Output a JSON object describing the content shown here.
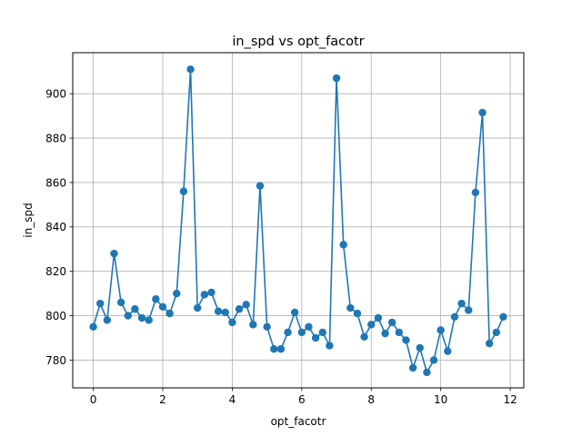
{
  "chart_data": {
    "type": "line",
    "title": "in_spd vs opt_facotr",
    "xlabel": "opt_facotr",
    "ylabel": "in_spd",
    "xlim": [
      -0.59,
      12.39
    ],
    "ylim": [
      767.5,
      918.5
    ],
    "grid": true,
    "series_color": "#1f77b4",
    "xticks": [
      0,
      2,
      4,
      6,
      8,
      10,
      12
    ],
    "yticks": [
      780,
      800,
      820,
      840,
      860,
      880,
      900
    ],
    "x": [
      0.0,
      0.2,
      0.4,
      0.6,
      0.8,
      1.0,
      1.2,
      1.4,
      1.6,
      1.8,
      2.0,
      2.2,
      2.4,
      2.6,
      2.8,
      3.0,
      3.2,
      3.4,
      3.6,
      3.8,
      4.0,
      4.2,
      4.4,
      4.6,
      4.8,
      5.0,
      5.2,
      5.4,
      5.6,
      5.8,
      6.0,
      6.2,
      6.4,
      6.6,
      6.8,
      7.0,
      7.2,
      7.4,
      7.6,
      7.8,
      8.0,
      8.2,
      8.4,
      8.6,
      8.8,
      9.0,
      9.2,
      9.4,
      9.6,
      9.8,
      10.0,
      10.2,
      10.4,
      10.6,
      10.8,
      11.0,
      11.2,
      11.4,
      11.6,
      11.8
    ],
    "y": [
      795,
      805.5,
      798,
      828,
      806,
      800,
      803,
      799,
      798,
      807.5,
      804,
      801,
      810,
      856,
      911,
      803.5,
      809.5,
      810.5,
      802,
      801.5,
      797,
      803,
      805,
      796,
      858.5,
      795,
      785,
      785,
      792.5,
      801.5,
      792.5,
      795,
      790,
      792.5,
      786.5,
      907,
      832,
      803.5,
      801,
      790.5,
      796,
      799,
      792,
      797,
      792.5,
      789,
      776.5,
      785.5,
      774.5,
      780,
      793.5,
      784,
      799.5,
      805.5,
      802.5,
      855.5,
      891.5,
      787.5,
      792.5,
      799.5
    ]
  }
}
